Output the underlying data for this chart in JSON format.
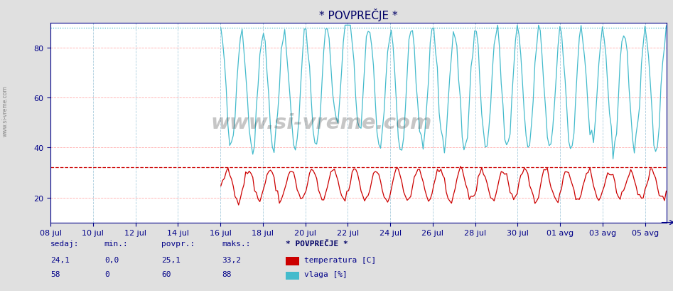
{
  "title": "* POVPREČJE *",
  "ylim": [
    10,
    90
  ],
  "yticks": [
    20,
    40,
    60,
    80
  ],
  "xlabel_dates": [
    "08 jul",
    "10 jul",
    "12 jul",
    "14 jul",
    "16 jul",
    "18 jul",
    "20 jul",
    "22 jul",
    "24 jul",
    "26 jul",
    "28 jul",
    "30 jul",
    "01 avg",
    "03 avg",
    "05 avg"
  ],
  "hline_red": 32,
  "hline_blue_dotted": 88,
  "temp_color": "#cc0000",
  "humidity_color": "#44bbcc",
  "grid_color_red": "#ffaaaa",
  "grid_color_blue": "#aaccdd",
  "title_color": "#000066",
  "axis_color": "#000088",
  "text_color": "#000088",
  "table_headers": [
    "sedaj:",
    "min.:",
    "povpr.:",
    "maks.:"
  ],
  "table_temp": [
    "24,1",
    "0,0",
    "25,1",
    "33,2"
  ],
  "table_hum": [
    "58",
    "0",
    "60",
    "88"
  ],
  "legend_title": "* POVPREČJE *",
  "legend_temp": "temperatura [C]",
  "legend_hum": "vlaga [%]",
  "watermark": "www.si-vreme.com",
  "left_label": "www.si-vreme.com"
}
